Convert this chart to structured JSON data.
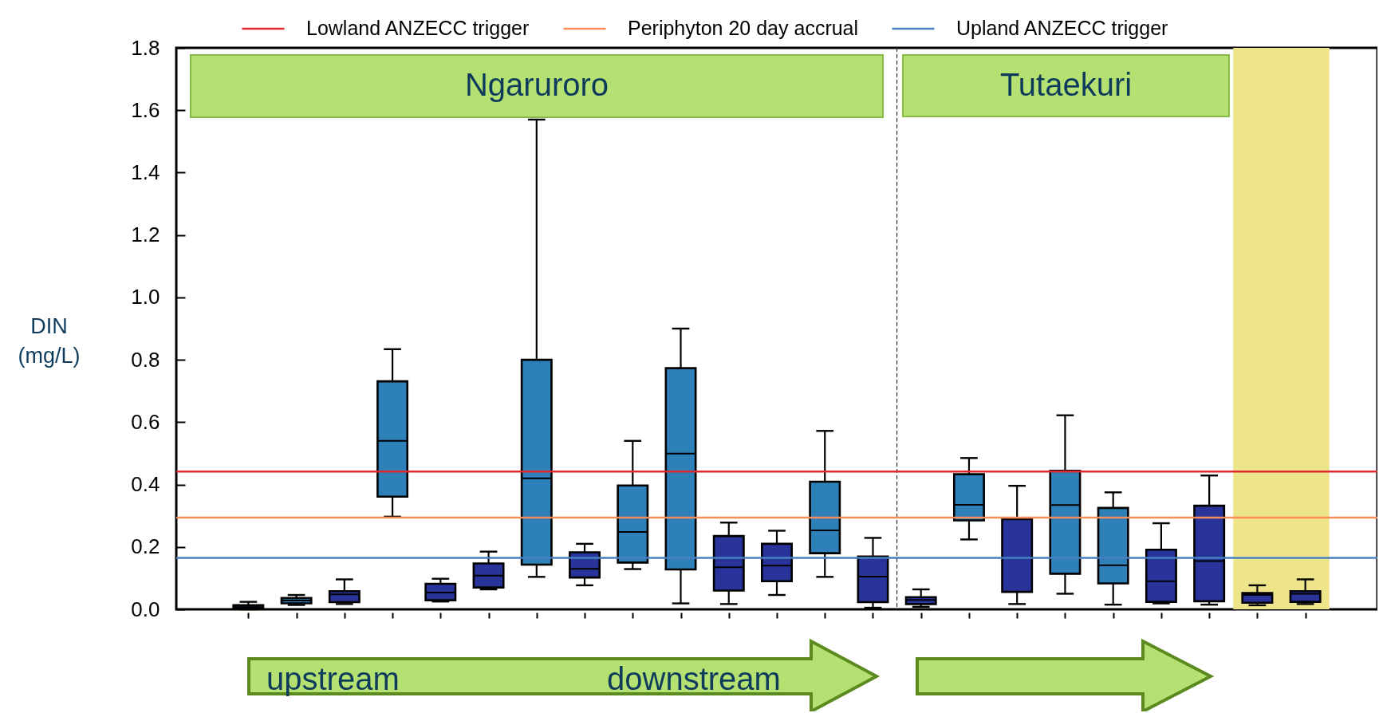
{
  "chart_data": {
    "type": "box",
    "ylabel": "DIN\n(mg/L)",
    "categories": [
      null,
      null,
      null,
      null,
      null,
      null,
      null,
      null,
      null,
      null,
      null,
      null,
      null,
      null,
      null,
      null,
      null,
      null,
      null,
      null,
      null,
      null,
      null,
      null,
      null
    ],
    "series": [
      {
        "color": "#2e80b9",
        "boxes": [
          null,
          null,
          {
            "low": 0.014,
            "q1": 0.019,
            "median": 0.028,
            "q3": 0.036,
            "high": 0.046
          },
          null,
          {
            "low": 0.297,
            "q1": 0.361,
            "median": 0.54,
            "q3": 0.731,
            "high": 0.834
          },
          null,
          null,
          {
            "low": 0.104,
            "q1": 0.143,
            "median": 0.42,
            "q3": 0.8,
            "high": 1.57
          },
          null,
          {
            "low": 0.129,
            "q1": 0.15,
            "median": 0.248,
            "q3": 0.397,
            "high": 0.54
          },
          {
            "low": 0.019,
            "q1": 0.128,
            "median": 0.499,
            "q3": 0.773,
            "high": 0.9
          },
          null,
          null,
          {
            "low": 0.104,
            "q1": 0.18,
            "median": 0.253,
            "q3": 0.409,
            "high": 0.572
          },
          null,
          null,
          {
            "low": 0.224,
            "q1": 0.285,
            "median": 0.335,
            "q3": 0.433,
            "high": 0.485
          },
          null,
          {
            "low": 0.05,
            "q1": 0.114,
            "median": 0.334,
            "q3": 0.444,
            "high": 0.622
          },
          {
            "low": 0.015,
            "q1": 0.083,
            "median": 0.141,
            "q3": 0.325,
            "high": 0.375
          },
          null,
          null,
          null,
          null,
          null
        ]
      },
      {
        "color": "#28349a",
        "boxes": [
          null,
          {
            "low": 0.0,
            "q1": 0.003,
            "median": 0.007,
            "q3": 0.013,
            "high": 0.024
          },
          null,
          {
            "low": 0.017,
            "q1": 0.023,
            "median": 0.048,
            "q3": 0.058,
            "high": 0.096
          },
          null,
          {
            "low": 0.025,
            "q1": 0.029,
            "median": 0.054,
            "q3": 0.082,
            "high": 0.098
          },
          {
            "low": 0.064,
            "q1": 0.07,
            "median": 0.108,
            "q3": 0.147,
            "high": 0.185
          },
          null,
          {
            "low": 0.077,
            "q1": 0.102,
            "median": 0.13,
            "q3": 0.183,
            "high": 0.21
          },
          null,
          null,
          {
            "low": 0.017,
            "q1": 0.06,
            "median": 0.135,
            "q3": 0.235,
            "high": 0.278
          },
          {
            "low": 0.046,
            "q1": 0.09,
            "median": 0.14,
            "q3": 0.21,
            "high": 0.252
          },
          null,
          {
            "low": 0.005,
            "q1": 0.023,
            "median": 0.105,
            "q3": 0.169,
            "high": 0.229
          },
          {
            "low": 0.008,
            "q1": 0.017,
            "median": 0.03,
            "q3": 0.039,
            "high": 0.064
          },
          null,
          {
            "low": 0.017,
            "q1": 0.056,
            "median": 0.289,
            "q3": 0.289,
            "high": 0.396
          },
          null,
          null,
          {
            "low": 0.019,
            "q1": 0.024,
            "median": 0.09,
            "q3": 0.191,
            "high": 0.276
          },
          {
            "low": 0.015,
            "q1": 0.026,
            "median": 0.155,
            "q3": 0.332,
            "high": 0.429
          },
          {
            "low": 0.013,
            "q1": 0.021,
            "median": 0.046,
            "q3": 0.052,
            "high": 0.077
          },
          {
            "low": 0.017,
            "q1": 0.024,
            "median": 0.05,
            "q3": 0.058,
            "high": 0.096
          },
          null
        ]
      }
    ],
    "ylim": [
      0,
      1.8
    ],
    "yticks": [
      {
        "value": 0,
        "label": "0.0"
      },
      0.2,
      0.4,
      0.6,
      0.8,
      {
        "value": 1,
        "label": "1.0"
      },
      1.2,
      1.4,
      1.6,
      1.8
    ],
    "ref_lines": [
      {
        "axis": "y",
        "value": 0.442,
        "label": "Lowland ANZECC trigger",
        "color": "#e0282e"
      },
      {
        "axis": "y",
        "value": 0.294,
        "label": "Periphyton 20 day accrual",
        "color": "#fa8c5a"
      },
      {
        "axis": "y",
        "value": 0.165,
        "label": "Upland ANZECC trigger",
        "color": "#4a7fc1"
      }
    ],
    "annotations": [
      "Ngaruroro",
      "Tutaekuri",
      "upstream",
      "downstream"
    ],
    "legend": "top",
    "tick_labels": "y"
  }
}
